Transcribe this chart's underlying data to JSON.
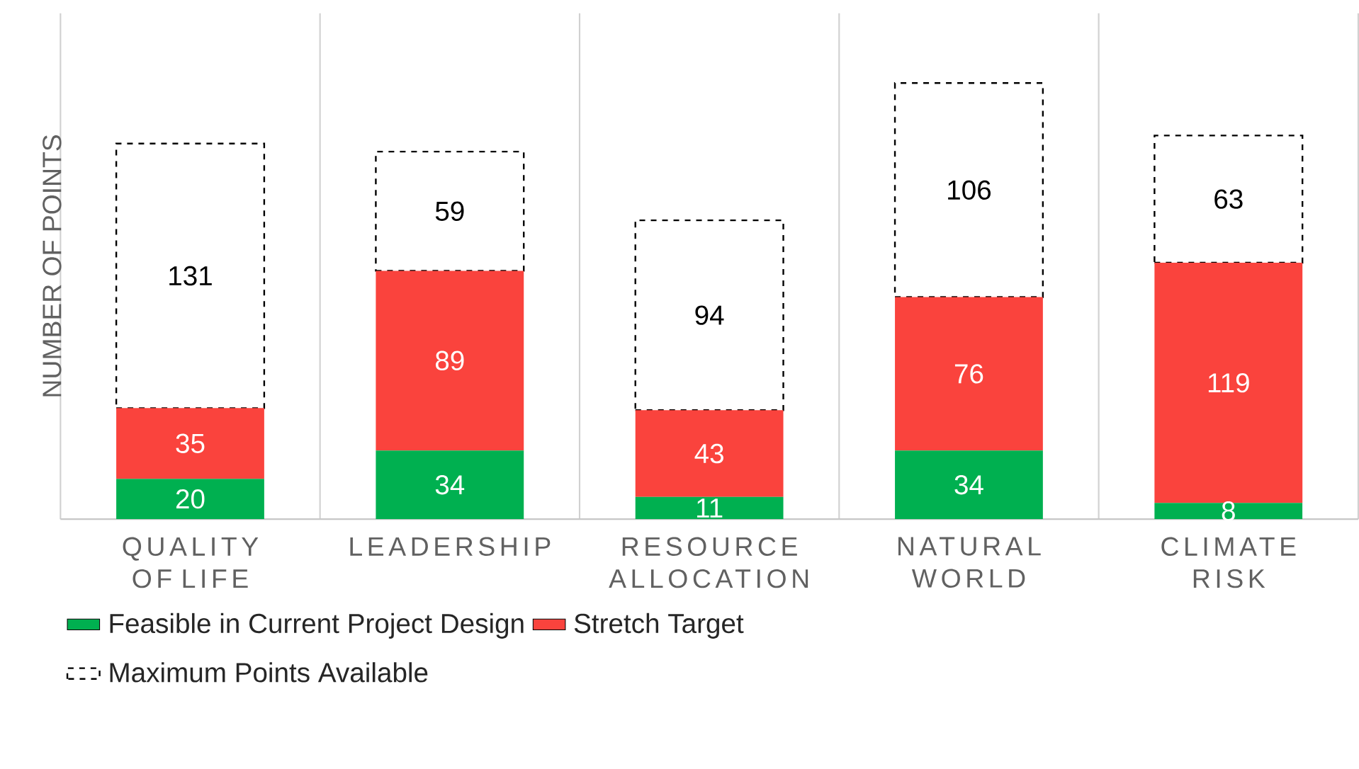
{
  "chart_data": {
    "type": "bar",
    "stacked": true,
    "ylabel": "NUMBER OF POINTS",
    "categories": [
      "QUALITY OF LIFE",
      "LEADERSHIP",
      "RESOURCE ALLOCATION",
      "NATURAL WORLD",
      "CLIMATE RISK"
    ],
    "series": [
      {
        "name": "Feasible in Current Project Design",
        "color": "#00b050",
        "values": [
          20,
          34,
          11,
          34,
          8
        ]
      },
      {
        "name": "Stretch Target",
        "color": "#fa433d",
        "values": [
          35,
          89,
          43,
          76,
          119
        ]
      },
      {
        "name": "Maximum Points Available",
        "color": "#ffffff",
        "line_style": "dashed",
        "values": [
          131,
          59,
          94,
          106,
          63
        ]
      }
    ],
    "data_labels": true,
    "grid": "x",
    "legend": "bottom"
  }
}
